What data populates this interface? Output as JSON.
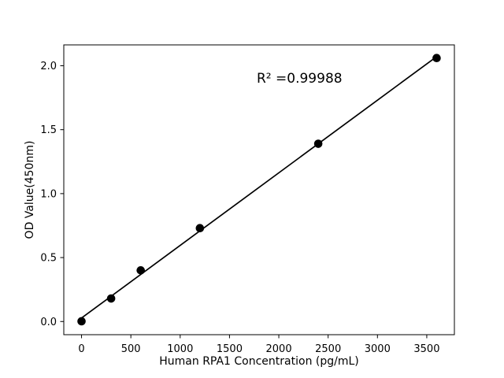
{
  "figure": {
    "background": "#ffffff",
    "annotation": "R² =0.99988"
  },
  "chart_data": {
    "type": "scatter",
    "title": "",
    "xlabel": "Human RPA1 Concentration (pg/mL)",
    "ylabel": "OD Value(450nm)",
    "x": [
      0,
      300,
      600,
      1200,
      2400,
      3600
    ],
    "y": [
      0.002,
      0.18,
      0.4,
      0.73,
      1.39,
      2.06
    ],
    "fit": {
      "type": "linear",
      "r_squared_text": "R² =0.99988",
      "spans_x": [
        0,
        3600
      ]
    },
    "x_ticks": [
      0,
      500,
      1000,
      1500,
      2000,
      2500,
      3000,
      3500
    ],
    "x_tick_labels": [
      "0",
      "500",
      "1000",
      "1500",
      "2000",
      "2500",
      "3000",
      "3500"
    ],
    "y_ticks": [
      0.0,
      0.5,
      1.0,
      1.5,
      2.0
    ],
    "y_tick_labels": [
      "0.0",
      "0.5",
      "1.0",
      "1.5",
      "2.0"
    ],
    "xlim": [
      -180,
      3780
    ],
    "ylim": [
      -0.103,
      2.163
    ],
    "grid": false,
    "legend": null,
    "marker_color": "#000000",
    "line_color": "#000000",
    "axis_color": "#000000"
  }
}
